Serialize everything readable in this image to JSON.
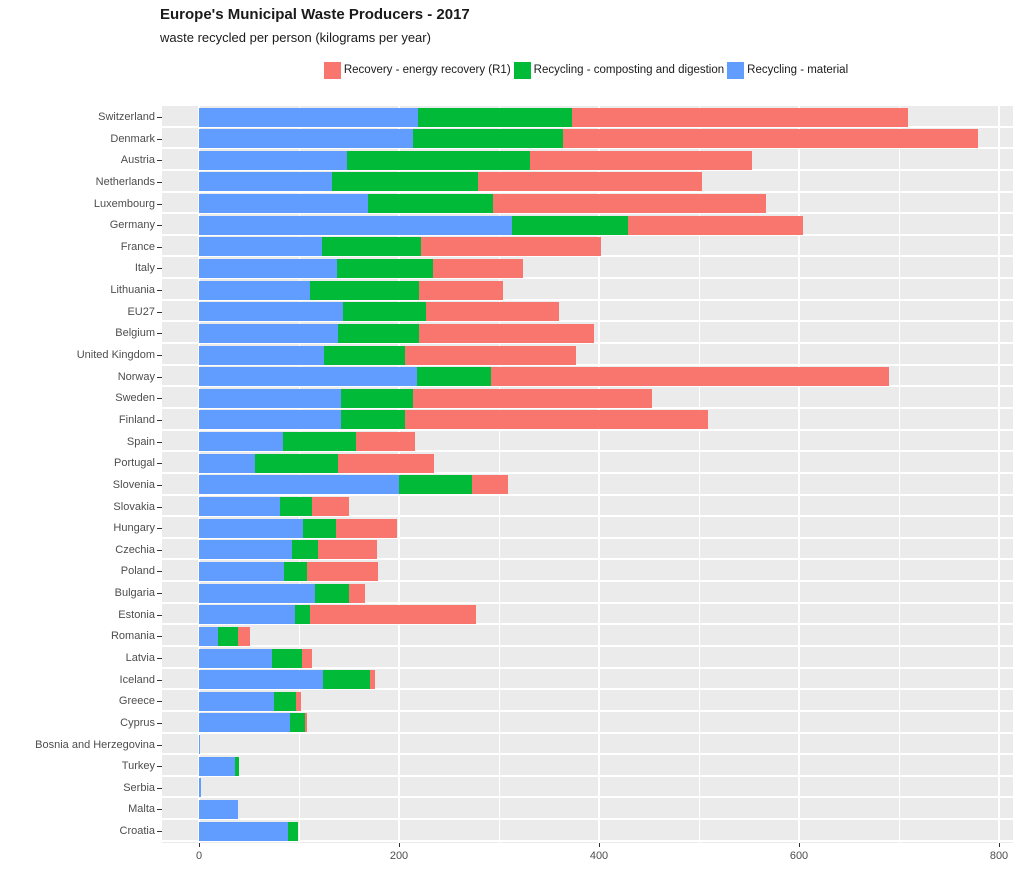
{
  "header": {
    "title": "Europe's Municipal Waste Producers - 2017",
    "subtitle": "waste recycled per person (kilograms per year)"
  },
  "chart_data": {
    "type": "bar",
    "orientation": "horizontal",
    "stacked": true,
    "title": "Europe's Municipal Waste Producers - 2017",
    "subtitle": "waste recycled per person (kilograms per year)",
    "x_axis": {
      "ticks": [
        0,
        200,
        400,
        600,
        800
      ],
      "range": [
        0,
        800
      ],
      "minor_gridlines": [
        100,
        300,
        500,
        700
      ],
      "unit": "kilograms per person per year"
    },
    "legend": {
      "position": "top-center",
      "items": [
        {
          "label": "Recovery - energy recovery (R1)",
          "color": "#F8766D"
        },
        {
          "label": "Recycling - composting and digestion",
          "color": "#00BA38"
        },
        {
          "label": "Recycling - material",
          "color": "#619CFF"
        }
      ]
    },
    "panel_background": "#EBEBEB",
    "gridline_color": "#FFFFFF",
    "categories": [
      "Switzerland",
      "Denmark",
      "Austria",
      "Netherlands",
      "Luxembourg",
      "Germany",
      "France",
      "Italy",
      "Lithuania",
      "EU27",
      "Belgium",
      "United Kingdom",
      "Norway",
      "Sweden",
      "Finland",
      "Spain",
      "Portugal",
      "Slovenia",
      "Slovakia",
      "Hungary",
      "Czechia",
      "Poland",
      "Bulgaria",
      "Estonia",
      "Romania",
      "Latvia",
      "Iceland",
      "Greece",
      "Cyprus",
      "Bosnia and Herzegovina",
      "Turkey",
      "Serbia",
      "Malta",
      "Croatia"
    ],
    "series": [
      {
        "name": "Recycling - material",
        "color": "#619CFF",
        "values": [
          219,
          214,
          148,
          133,
          169,
          313,
          123,
          138,
          111,
          144,
          139,
          125,
          218,
          142,
          142,
          84,
          56,
          200,
          81,
          104,
          93,
          85,
          116,
          96,
          19,
          73,
          124,
          75,
          91,
          1,
          36,
          2,
          39,
          89
        ]
      },
      {
        "name": "Recycling - composting and digestion",
        "color": "#00BA38",
        "values": [
          154,
          150,
          183,
          146,
          125,
          116,
          99,
          96,
          109,
          83,
          81,
          81,
          74,
          72,
          64,
          73,
          83,
          73,
          32,
          33,
          26,
          23,
          34,
          15,
          20,
          30,
          47,
          22,
          15,
          0,
          4,
          0,
          0,
          10
        ]
      },
      {
        "name": "Recovery - energy recovery (R1)",
        "color": "#F8766D",
        "values": [
          336,
          415,
          222,
          224,
          273,
          175,
          180,
          90,
          84,
          133,
          175,
          171,
          398,
          239,
          303,
          59,
          96,
          36,
          37,
          61,
          59,
          71,
          16,
          166,
          12,
          10,
          5,
          5,
          2,
          0,
          0,
          0,
          0,
          0
        ]
      }
    ],
    "stack_order": [
      "Recycling - material",
      "Recycling - composting and digestion",
      "Recovery - energy recovery (R1)"
    ]
  }
}
